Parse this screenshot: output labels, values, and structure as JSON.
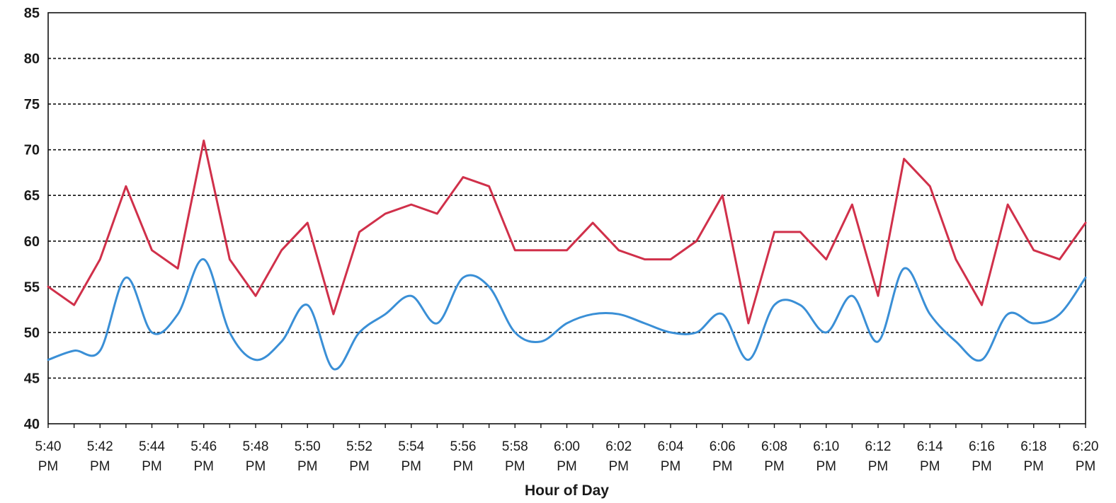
{
  "chart_data": {
    "type": "line",
    "title": "",
    "xlabel": "Hour of Day",
    "ylabel": "",
    "ylim": [
      40,
      85
    ],
    "yticks": [
      "40",
      "45",
      "50",
      "55",
      "60",
      "65",
      "70",
      "75",
      "80",
      "85"
    ],
    "grid": true,
    "legend": "none",
    "x": [
      "5:40 PM",
      "5:41 PM",
      "5:42 PM",
      "5:43 PM",
      "5:44 PM",
      "5:45 PM",
      "5:46 PM",
      "5:47 PM",
      "5:48 PM",
      "5:49 PM",
      "5:50 PM",
      "5:51 PM",
      "5:52 PM",
      "5:53 PM",
      "5:54 PM",
      "5:55 PM",
      "5:56 PM",
      "5:57 PM",
      "5:58 PM",
      "5:59 PM",
      "6:00 PM",
      "6:01 PM",
      "6:02 PM",
      "6:03 PM",
      "6:04 PM",
      "6:05 PM",
      "6:06 PM",
      "6:07 PM",
      "6:08 PM",
      "6:09 PM",
      "6:10 PM",
      "6:11 PM",
      "6:12 PM",
      "6:13 PM",
      "6:14 PM",
      "6:15 PM",
      "6:16 PM",
      "6:17 PM",
      "6:18 PM",
      "6:19 PM",
      "6:20 PM"
    ],
    "xtick_labels": [
      {
        "time": "5:40",
        "ampm": "PM"
      },
      {
        "time": "5:42",
        "ampm": "PM"
      },
      {
        "time": "5:44",
        "ampm": "PM"
      },
      {
        "time": "5:46",
        "ampm": "PM"
      },
      {
        "time": "5:48",
        "ampm": "PM"
      },
      {
        "time": "5:50",
        "ampm": "PM"
      },
      {
        "time": "5:52",
        "ampm": "PM"
      },
      {
        "time": "5:54",
        "ampm": "PM"
      },
      {
        "time": "5:56",
        "ampm": "PM"
      },
      {
        "time": "5:58",
        "ampm": "PM"
      },
      {
        "time": "6:00",
        "ampm": "PM"
      },
      {
        "time": "6:02",
        "ampm": "PM"
      },
      {
        "time": "6:04",
        "ampm": "PM"
      },
      {
        "time": "6:06",
        "ampm": "PM"
      },
      {
        "time": "6:08",
        "ampm": "PM"
      },
      {
        "time": "6:10",
        "ampm": "PM"
      },
      {
        "time": "6:12",
        "ampm": "PM"
      },
      {
        "time": "6:14",
        "ampm": "PM"
      },
      {
        "time": "6:16",
        "ampm": "PM"
      },
      {
        "time": "6:18",
        "ampm": "PM"
      },
      {
        "time": "6:20",
        "ampm": "PM"
      }
    ],
    "series": [
      {
        "color": "#d0304a",
        "smooth": false,
        "values": [
          55,
          53,
          58,
          66,
          59,
          57,
          71,
          58,
          54,
          59,
          62,
          52,
          61,
          63,
          64,
          63,
          67,
          66,
          59,
          59,
          59,
          62,
          59,
          58,
          58,
          60,
          65,
          51,
          61,
          61,
          58,
          64,
          54,
          69,
          66,
          58,
          53,
          64,
          59,
          58,
          62
        ]
      },
      {
        "color": "#3a8fd6",
        "smooth": true,
        "values": [
          47,
          48,
          48,
          56,
          50,
          52,
          58,
          50,
          47,
          49,
          53,
          46,
          50,
          52,
          54,
          51,
          56,
          55,
          50,
          49,
          51,
          52,
          52,
          51,
          50,
          50,
          52,
          47,
          53,
          53,
          50,
          54,
          49,
          57,
          52,
          49,
          47,
          52,
          51,
          52,
          56
        ]
      }
    ]
  }
}
